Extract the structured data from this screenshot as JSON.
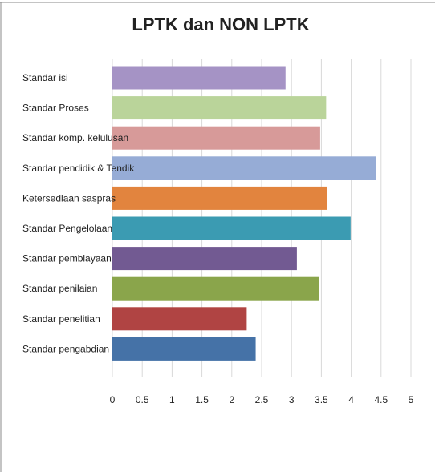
{
  "chart_data": {
    "type": "bar",
    "orientation": "horizontal",
    "title": "LPTK dan NON LPTK",
    "categories": [
      "Standar isi",
      "Standar Proses",
      "Standar komp. kelulusan",
      "Standar pendidik & Tendik",
      "Ketersediaan saspras",
      "Standar Pengelolaan",
      "Standar pembiayaan",
      "Standar  penilaian",
      "Standar penelitian",
      "Standar pengabdian"
    ],
    "values": [
      2.9,
      3.58,
      3.48,
      4.42,
      3.6,
      3.99,
      3.09,
      3.46,
      2.25,
      2.4
    ],
    "colors": [
      "#a593c5",
      "#bad49a",
      "#d79a99",
      "#96acd6",
      "#e2843e",
      "#3b9bb2",
      "#725a92",
      "#8aa54b",
      "#b04443",
      "#4572a7"
    ],
    "xlim": [
      0,
      5
    ],
    "ticks": [
      "0",
      "0.5",
      "1",
      "1.5",
      "2",
      "2.5",
      "3",
      "3.5",
      "4",
      "4.5",
      "5"
    ],
    "grid": true,
    "legend": "none"
  }
}
